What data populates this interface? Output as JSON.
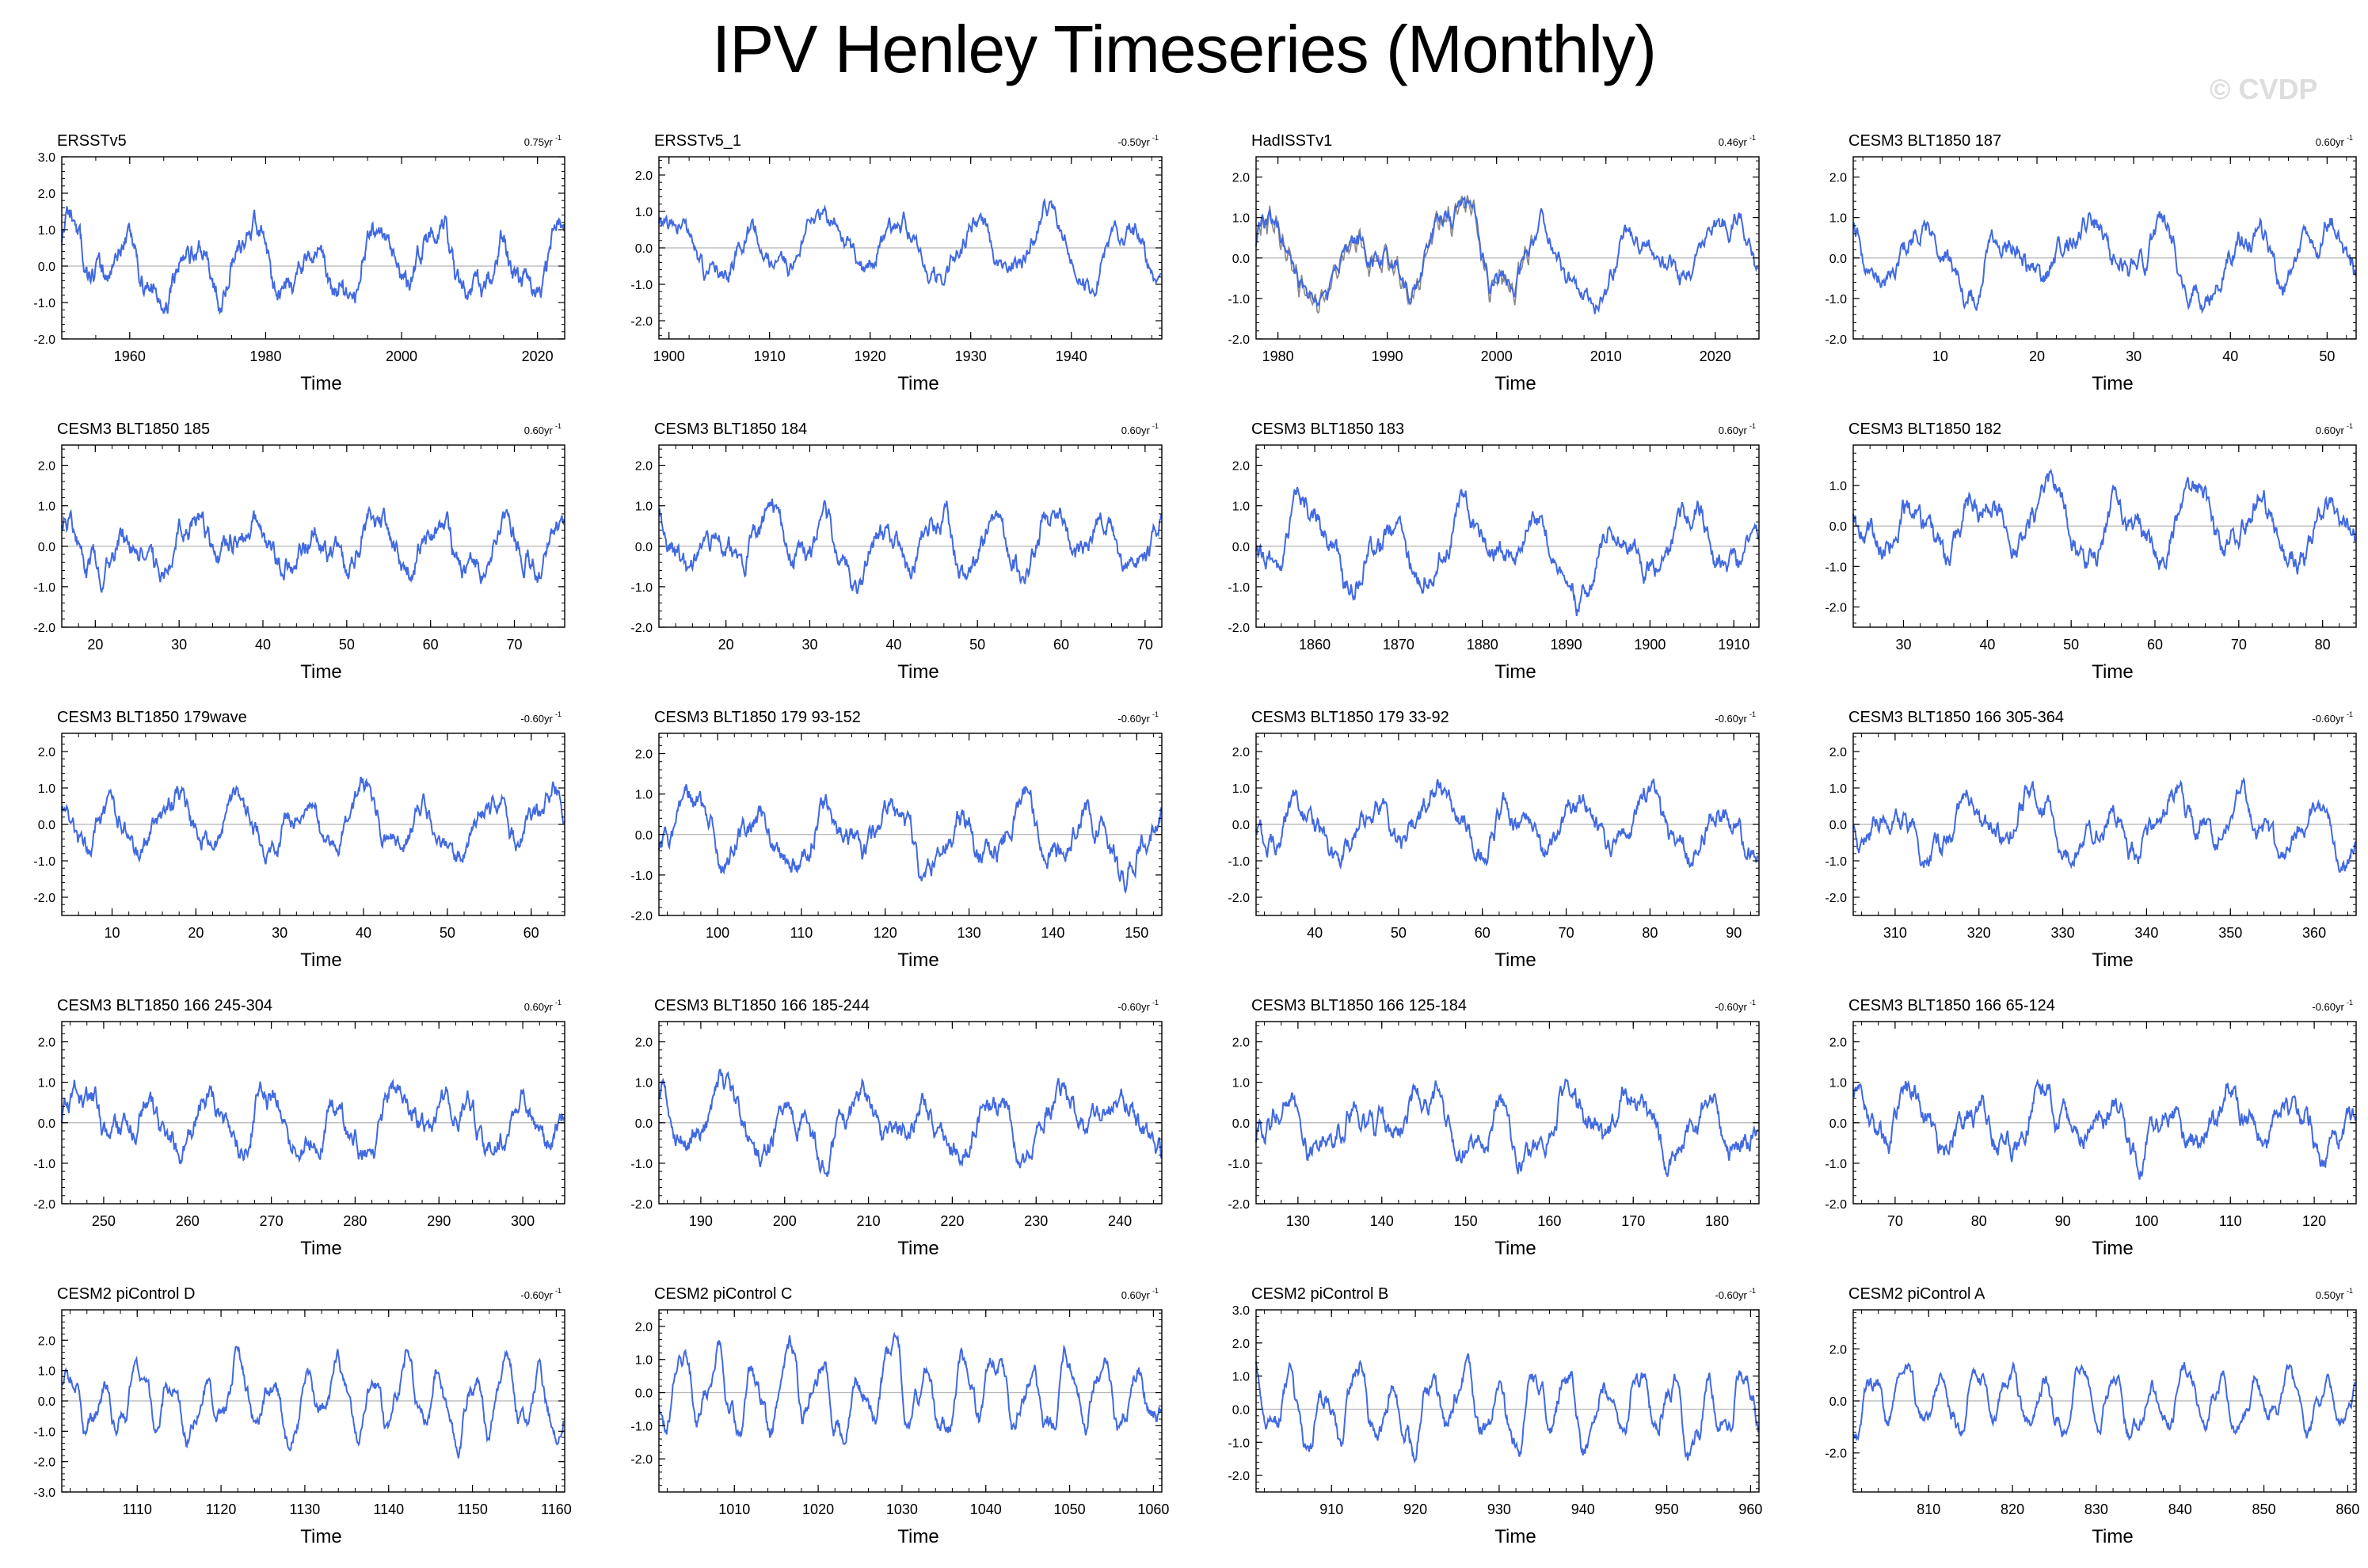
{
  "title": "IPV Henley Timeseries (Monthly)",
  "watermark": "© CVDP",
  "colors": {
    "line": "#4169e1",
    "obs_line": "#8a8a8a",
    "zero_line": "#b4b4b4",
    "frame": "#000000"
  },
  "chart_data": [
    {
      "type": "line",
      "title": "ERSSTv5",
      "trend": "0.75yr",
      "xlabel": "Time",
      "xlim": [
        1950,
        2024
      ],
      "ylim": [
        -2.0,
        3.0
      ],
      "yticks": [
        -2.0,
        -1.0,
        0.0,
        1.0,
        2.0,
        3.0
      ],
      "xticks": [
        1960,
        1980,
        2000,
        2020
      ],
      "seed": 11,
      "amp": 1.0,
      "period": 110
    },
    {
      "type": "line",
      "title": "ERSSTv5_1",
      "trend": "-0.50yr",
      "xlabel": "Time",
      "xlim": [
        1899,
        1949
      ],
      "ylim": [
        -2.5,
        2.5
      ],
      "yticks": [
        -2.0,
        -1.0,
        0.0,
        1.0,
        2.0
      ],
      "xticks": [
        1900,
        1910,
        1920,
        1930,
        1940
      ],
      "seed": 23,
      "amp": 0.85,
      "period": 90
    },
    {
      "type": "line",
      "title": "HadISSTv1",
      "trend": "0.46yr",
      "xlabel": "Time",
      "xlim": [
        1978,
        2024
      ],
      "ylim": [
        -2.0,
        2.5
      ],
      "yticks": [
        -2.0,
        -1.0,
        0.0,
        1.0,
        2.0
      ],
      "xticks": [
        1980,
        1990,
        2000,
        2010,
        2020
      ],
      "seed": 37,
      "amp": 0.95,
      "period": 100,
      "obs": true
    },
    {
      "type": "line",
      "title": "CESM3 BLT1850 187",
      "trend": "0.60yr",
      "xlabel": "Time",
      "xlim": [
        1,
        53
      ],
      "ylim": [
        -2.0,
        2.5
      ],
      "yticks": [
        -2.0,
        -1.0,
        0.0,
        1.0,
        2.0
      ],
      "xticks": [
        10,
        20,
        30,
        40,
        50
      ],
      "seed": 41,
      "amp": 0.9,
      "period": 100
    },
    {
      "type": "line",
      "title": "CESM3 BLT1850 185",
      "trend": "0.60yr",
      "xlabel": "Time",
      "xlim": [
        16,
        76
      ],
      "ylim": [
        -2.0,
        2.5
      ],
      "yticks": [
        -2.0,
        -1.0,
        0.0,
        1.0,
        2.0
      ],
      "xticks": [
        20,
        30,
        40,
        50,
        60,
        70
      ],
      "seed": 53,
      "amp": 0.7,
      "period": 90
    },
    {
      "type": "line",
      "title": "CESM3 BLT1850 184",
      "trend": "0.60yr",
      "xlabel": "Time",
      "xlim": [
        12,
        72
      ],
      "ylim": [
        -2.0,
        2.5
      ],
      "yticks": [
        -2.0,
        -1.0,
        0.0,
        1.0,
        2.0
      ],
      "xticks": [
        20,
        30,
        40,
        50,
        60,
        70
      ],
      "seed": 67,
      "amp": 0.75,
      "period": 80
    },
    {
      "type": "line",
      "title": "CESM3 BLT1850 183",
      "trend": "0.60yr",
      "xlabel": "Time",
      "xlim": [
        1853,
        1913
      ],
      "ylim": [
        -2.0,
        2.5
      ],
      "yticks": [
        -2.0,
        -1.0,
        0.0,
        1.0,
        2.0
      ],
      "xticks": [
        1860,
        1870,
        1880,
        1890,
        1900,
        1910
      ],
      "seed": 71,
      "amp": 0.9,
      "period": 110
    },
    {
      "type": "line",
      "title": "CESM3 BLT1850 182",
      "trend": "0.60yr",
      "xlabel": "Time",
      "xlim": [
        24,
        84
      ],
      "ylim": [
        -2.5,
        2.0
      ],
      "yticks": [
        -2.0,
        -1.0,
        0.0,
        1.0
      ],
      "xticks": [
        30,
        40,
        50,
        60,
        70,
        80
      ],
      "seed": 83,
      "amp": 0.75,
      "period": 100
    },
    {
      "type": "line",
      "title": "CESM3 BLT1850 179wave",
      "trend": "-0.60yr",
      "xlabel": "Time",
      "xlim": [
        4,
        64
      ],
      "ylim": [
        -2.5,
        2.5
      ],
      "yticks": [
        -2.0,
        -1.0,
        0.0,
        1.0,
        2.0
      ],
      "xticks": [
        10,
        20,
        30,
        40,
        50,
        60
      ],
      "seed": 97,
      "amp": 0.8,
      "period": 90
    },
    {
      "type": "line",
      "title": "CESM3 BLT1850 179 93-152",
      "trend": "-0.60yr",
      "xlabel": "Time",
      "xlim": [
        93,
        153
      ],
      "ylim": [
        -2.0,
        2.5
      ],
      "yticks": [
        -2.0,
        -1.0,
        0.0,
        1.0,
        2.0
      ],
      "xticks": [
        100,
        110,
        120,
        130,
        140,
        150
      ],
      "seed": 101,
      "amp": 0.85,
      "period": 95
    },
    {
      "type": "line",
      "title": "CESM3 BLT1850 179 33-92",
      "trend": "-0.60yr",
      "xlabel": "Time",
      "xlim": [
        33,
        93
      ],
      "ylim": [
        -2.5,
        2.5
      ],
      "yticks": [
        -2.0,
        -1.0,
        0.0,
        1.0,
        2.0
      ],
      "xticks": [
        40,
        50,
        60,
        70,
        80,
        90
      ],
      "seed": 113,
      "amp": 0.85,
      "period": 100
    },
    {
      "type": "line",
      "title": "CESM3 BLT1850 166 305-364",
      "trend": "-0.60yr",
      "xlabel": "Time",
      "xlim": [
        305,
        365
      ],
      "ylim": [
        -2.5,
        2.5
      ],
      "yticks": [
        -2.0,
        -1.0,
        0.0,
        1.0,
        2.0
      ],
      "xticks": [
        310,
        320,
        330,
        340,
        350,
        360
      ],
      "seed": 127,
      "amp": 0.9,
      "period": 100
    },
    {
      "type": "line",
      "title": "CESM3 BLT1850 166 245-304",
      "trend": "0.60yr",
      "xlabel": "Time",
      "xlim": [
        245,
        305
      ],
      "ylim": [
        -2.0,
        2.5
      ],
      "yticks": [
        -2.0,
        -1.0,
        0.0,
        1.0,
        2.0
      ],
      "xticks": [
        250,
        260,
        270,
        280,
        290,
        300
      ],
      "seed": 131,
      "amp": 0.75,
      "period": 90
    },
    {
      "type": "line",
      "title": "CESM3 BLT1850 166 185-244",
      "trend": "-0.60yr",
      "xlabel": "Time",
      "xlim": [
        185,
        245
      ],
      "ylim": [
        -2.0,
        2.5
      ],
      "yticks": [
        -2.0,
        -1.0,
        0.0,
        1.0,
        2.0
      ],
      "xticks": [
        190,
        200,
        210,
        220,
        230,
        240
      ],
      "seed": 149,
      "amp": 0.8,
      "period": 95
    },
    {
      "type": "line",
      "title": "CESM3 BLT1850 166 125-184",
      "trend": "-0.60yr",
      "xlabel": "Time",
      "xlim": [
        125,
        185
      ],
      "ylim": [
        -2.0,
        2.5
      ],
      "yticks": [
        -2.0,
        -1.0,
        0.0,
        1.0,
        2.0
      ],
      "xticks": [
        130,
        140,
        150,
        160,
        170,
        180
      ],
      "seed": 157,
      "amp": 0.8,
      "period": 100
    },
    {
      "type": "line",
      "title": "CESM3 BLT1850 166 65-124",
      "trend": "-0.60yr",
      "xlabel": "Time",
      "xlim": [
        65,
        125
      ],
      "ylim": [
        -2.0,
        2.5
      ],
      "yticks": [
        -2.0,
        -1.0,
        0.0,
        1.0,
        2.0
      ],
      "xticks": [
        70,
        80,
        90,
        100,
        110,
        120
      ],
      "seed": 163,
      "amp": 0.7,
      "period": 90
    },
    {
      "type": "line",
      "title": "CESM2 piControl D",
      "trend": "-0.60yr",
      "xlabel": "Time",
      "xlim": [
        1101,
        1161
      ],
      "ylim": [
        -3.0,
        3.0
      ],
      "yticks": [
        -3.0,
        -2.0,
        -1.0,
        0.0,
        1.0,
        2.0
      ],
      "xticks": [
        1110,
        1120,
        1130,
        1140,
        1150,
        1160
      ],
      "seed": 173,
      "amp": 1.2,
      "period": 48
    },
    {
      "type": "line",
      "title": "CESM2 piControl C",
      "trend": "0.60yr",
      "xlabel": "Time",
      "xlim": [
        1001,
        1061
      ],
      "ylim": [
        -3.0,
        2.5
      ],
      "yticks": [
        -2.0,
        -1.0,
        0.0,
        1.0,
        2.0
      ],
      "xticks": [
        1010,
        1020,
        1030,
        1040,
        1050,
        1060
      ],
      "seed": 181,
      "amp": 1.2,
      "period": 50
    },
    {
      "type": "line",
      "title": "CESM2 piControl B",
      "trend": "-0.60yr",
      "xlabel": "Time",
      "xlim": [
        901,
        961
      ],
      "ylim": [
        -2.5,
        3.0
      ],
      "yticks": [
        -2.0,
        -1.0,
        0.0,
        1.0,
        2.0,
        3.0
      ],
      "xticks": [
        910,
        920,
        930,
        940,
        950,
        960
      ],
      "seed": 191,
      "amp": 1.15,
      "period": 50
    },
    {
      "type": "line",
      "title": "CESM2 piControl A",
      "trend": "0.50yr",
      "xlabel": "Time",
      "xlim": [
        801,
        861
      ],
      "ylim": [
        -3.5,
        3.5
      ],
      "yticks": [
        -2.0,
        0.0,
        2.0
      ],
      "xticks": [
        810,
        820,
        830,
        840,
        850,
        860
      ],
      "seed": 197,
      "amp": 1.2,
      "period": 50
    }
  ]
}
